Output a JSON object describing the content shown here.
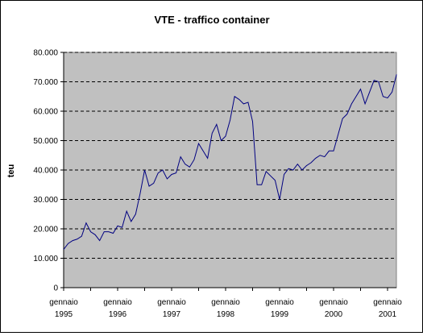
{
  "chart_data": {
    "type": "line",
    "title": "VTE - traffico container",
    "xlabel": "",
    "ylabel": "teu",
    "ylim": [
      0,
      80000
    ],
    "yticks": [
      0,
      10000,
      20000,
      30000,
      40000,
      50000,
      60000,
      70000,
      80000
    ],
    "ytick_labels": [
      "0",
      "10.000",
      "20.000",
      "30.000",
      "40.000",
      "50.000",
      "60.000",
      "70.000",
      "80.000"
    ],
    "xtick_labels": [
      {
        "line1": "gennaio",
        "line2": "1995"
      },
      {
        "line1": "gennaio",
        "line2": "1996"
      },
      {
        "line1": "gennaio",
        "line2": "1997"
      },
      {
        "line1": "gennaio",
        "line2": "1998"
      },
      {
        "line1": "gennaio",
        "line2": "1999"
      },
      {
        "line1": "gennaio",
        "line2": "2000"
      },
      {
        "line1": "gennaio",
        "line2": "2001"
      }
    ],
    "grid": "horizontal dashed",
    "series": [
      {
        "color": "#000080",
        "start": "1995-01",
        "values": [
          13000,
          15000,
          16000,
          16500,
          17500,
          22000,
          19000,
          18000,
          16000,
          19000,
          19000,
          18500,
          21000,
          20500,
          26000,
          22500,
          25000,
          32000,
          40000,
          34500,
          35500,
          39000,
          40000,
          37000,
          38500,
          39000,
          44500,
          42000,
          41000,
          43500,
          49000,
          46500,
          44000,
          52500,
          55500,
          50000,
          51500,
          57000,
          65000,
          64000,
          62500,
          63000,
          56500,
          35000,
          35000,
          39500,
          38000,
          36500,
          30000,
          38500,
          40500,
          40000,
          42000,
          40000,
          41500,
          42500,
          44000,
          45000,
          44500,
          46500,
          46500,
          52000,
          57500,
          59000,
          62500,
          65000,
          67500,
          62500,
          66500,
          70500,
          70000,
          65000,
          64500,
          66500,
          72500
        ]
      }
    ]
  }
}
